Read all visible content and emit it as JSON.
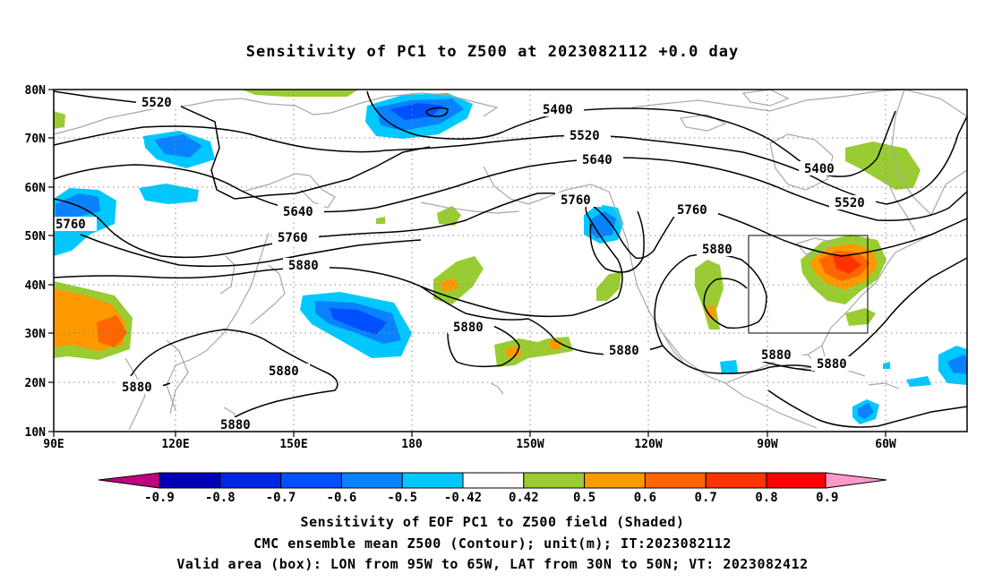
{
  "title": "Sensitivity of PC1 to Z500 at 2023082112 +0.0 day",
  "map": {
    "lat_ticks": [
      "80N",
      "70N",
      "60N",
      "50N",
      "40N",
      "30N",
      "20N",
      "10N"
    ],
    "lon_ticks": [
      "90E",
      "120E",
      "150E",
      "180",
      "150W",
      "120W",
      "90W",
      "60W"
    ],
    "contour_labels": [
      "5520",
      "5400",
      "5520",
      "5640",
      "5760",
      "5400",
      "5520",
      "5760",
      "5640",
      "5760",
      "5760",
      "5880",
      "5880",
      "5880",
      "5880",
      "5880",
      "5880",
      "5880",
      "5880",
      "5880"
    ],
    "valid_box": {
      "lon_from": "95W",
      "lon_to": "65W",
      "lat_from": "30N",
      "lat_to": "50N"
    }
  },
  "colorbar": {
    "labels": [
      "-0.9",
      "-0.8",
      "-0.7",
      "-0.6",
      "-0.5",
      "-0.42",
      "0.42",
      "0.5",
      "0.6",
      "0.7",
      "0.8",
      "0.9"
    ],
    "colors": [
      "#c0007f",
      "#0000b4",
      "#0026e6",
      "#0050ff",
      "#0a82ff",
      "#00c8ff",
      "#ffffff",
      "#99cc33",
      "#ff9900",
      "#ff6600",
      "#ff3300",
      "#ff0000",
      "#ff99cc"
    ]
  },
  "captions": [
    "Sensitivity of EOF PC1 to Z500 field (Shaded)",
    "CMC ensemble mean Z500 (Contour); unit(m); IT:2023082112",
    "Valid area (box): LON from 95W to 65W, LAT from 30N to 50N; VT: 2023082412"
  ],
  "colors": {
    "green": "#99cc33",
    "orange": "#ff9900",
    "dark_orange": "#ff6600",
    "red": "#ff3300",
    "cyan": "#00c8ff",
    "light_blue": "#0a82ff",
    "blue": "#0050ff",
    "coast": "#a8a8a8"
  }
}
